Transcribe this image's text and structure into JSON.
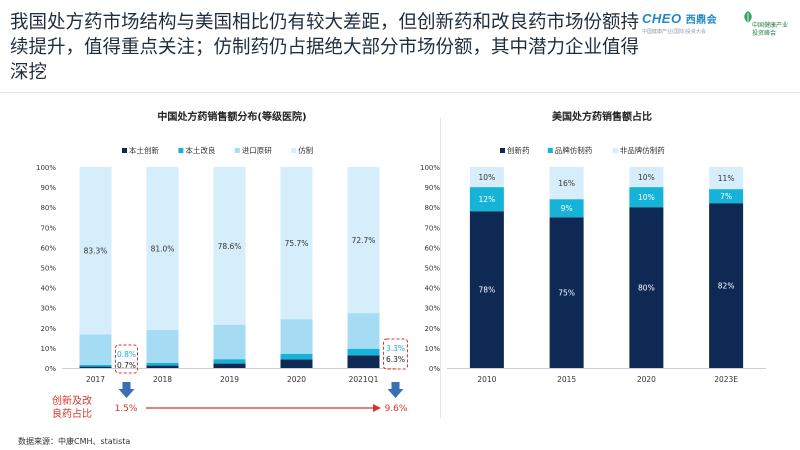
{
  "headline": "我国处方药市场结构与美国相比仍有较大差距，但创新药和改良药市场份额持续提升，值得重点关注；仿制药仍占据绝大部分市场份额，其中潜力企业值得深挖",
  "logo": {
    "brand": "CHEO",
    "brand_cn": "西鼎会",
    "sub": "中国健康产业(国际)投资大会",
    "partner_line1": "中国健康产业",
    "partner_line2": "投资峰会"
  },
  "source": "数据来源：中康CMH、statista",
  "colors": {
    "innovative": "#0e2a54",
    "improved": "#16b3d8",
    "imported": "#a6dcf3",
    "generic": "#d6eefb",
    "annotation_red": "#d9342b",
    "arrow_blue": "#3a6fb5"
  },
  "chart_data": [
    {
      "type": "bar",
      "stacked": true,
      "title": "中国处方药销售额分布(等级医院)",
      "categories": [
        "2017",
        "2018",
        "2019",
        "2020",
        "2021Q1"
      ],
      "ylim": [
        0,
        100
      ],
      "yticks": [
        "0%",
        "10%",
        "20%",
        "30%",
        "40%",
        "50%",
        "60%",
        "70%",
        "80%",
        "90%",
        "100%"
      ],
      "series": [
        {
          "name": "本土创新",
          "values": [
            0.7,
            1.2,
            2.2,
            4.3,
            6.3
          ]
        },
        {
          "name": "本土改良",
          "values": [
            0.8,
            1.3,
            2.2,
            2.8,
            3.3
          ]
        },
        {
          "name": "进口原研",
          "values": [
            15.2,
            16.5,
            17.0,
            17.2,
            17.7
          ]
        },
        {
          "name": "仿制",
          "values": [
            83.3,
            81.0,
            78.6,
            75.7,
            72.7
          ]
        }
      ],
      "data_labels": {
        "generic": [
          "83.3%",
          "81.0%",
          "78.6%",
          "75.7%",
          "72.7%"
        ],
        "first_improved": "0.8%",
        "first_innovative": "0.7%",
        "last_improved": "3.3%",
        "last_innovative": "6.3%"
      },
      "legend_position": "top",
      "annotation": {
        "label_line1": "创新及改",
        "label_line2": "良药占比",
        "start_value": "1.5%",
        "end_value": "9.6%"
      }
    },
    {
      "type": "bar",
      "stacked": true,
      "title": "美国处方药销售额占比",
      "categories": [
        "2010",
        "2015",
        "2020",
        "2023E"
      ],
      "ylim": [
        0,
        100
      ],
      "yticks": [
        "0%",
        "10%",
        "20%",
        "30%",
        "40%",
        "50%",
        "60%",
        "70%",
        "80%",
        "90%",
        "100%"
      ],
      "series": [
        {
          "name": "创新药",
          "values": [
            78,
            75,
            80,
            82
          ],
          "labels": [
            "78%",
            "75%",
            "80%",
            "82%"
          ]
        },
        {
          "name": "品牌仿制药",
          "values": [
            12,
            9,
            10,
            7
          ],
          "labels": [
            "12%",
            "9%",
            "10%",
            "7%"
          ]
        },
        {
          "name": "非品牌仿制药",
          "values": [
            10,
            16,
            10,
            11
          ],
          "labels": [
            "10%",
            "16%",
            "10%",
            "11%"
          ]
        }
      ],
      "legend_position": "top"
    }
  ]
}
